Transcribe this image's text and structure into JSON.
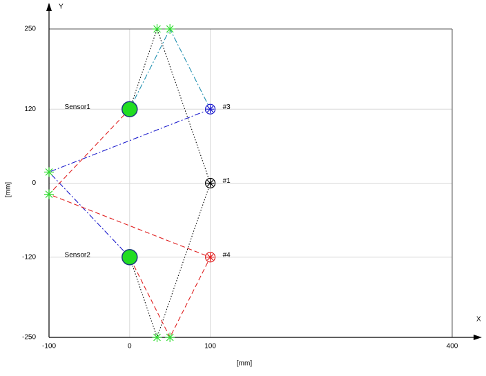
{
  "chart_data": {
    "type": "line",
    "x_axis_name": "X",
    "y_axis_name": "Y",
    "xlabel": "[mm]",
    "ylabel": "[mm]",
    "xlim": [
      -100,
      400
    ],
    "ylim": [
      -250,
      250
    ],
    "xticks": [
      -100,
      0,
      100,
      400
    ],
    "yticks": [
      -250,
      -120,
      0,
      120,
      250
    ],
    "grid": true,
    "series": [
      {
        "color": "#000000",
        "dash": "dotted",
        "x": [
          0,
          34,
          100,
          34,
          0
        ],
        "values": [
          120,
          250,
          0,
          -250,
          -120
        ]
      },
      {
        "color": "#1f8fb0",
        "dash": "dashdot",
        "x": [
          0,
          50,
          100
        ],
        "values": [
          120,
          250,
          120
        ]
      },
      {
        "color": "#1a1acc",
        "dash": "dashdot",
        "x": [
          100,
          -100,
          0
        ],
        "values": [
          120,
          18,
          -120
        ]
      },
      {
        "color": "#e02020",
        "dash": "dashed",
        "x": [
          0,
          -100,
          100,
          50,
          0
        ],
        "values": [
          120,
          -18,
          -120,
          -250,
          -120
        ]
      }
    ],
    "reflections": {
      "color": "#33dd33",
      "x": [
        34,
        50,
        34,
        50,
        -100,
        -100
      ],
      "values": [
        250,
        250,
        -250,
        -250,
        18,
        -18
      ]
    },
    "sensors": {
      "color": "#22dd22",
      "points": [
        {
          "label": "Sensor1",
          "x": 0,
          "y": 120
        },
        {
          "label": "Sensor2",
          "x": 0,
          "y": -120
        }
      ]
    },
    "targets": [
      {
        "label": "#1",
        "x": 100,
        "y": 0,
        "color": "#000000"
      },
      {
        "label": "#3",
        "x": 100,
        "y": 120,
        "color": "#1a1acc"
      },
      {
        "label": "#4",
        "x": 100,
        "y": -120,
        "color": "#e02020"
      }
    ]
  }
}
